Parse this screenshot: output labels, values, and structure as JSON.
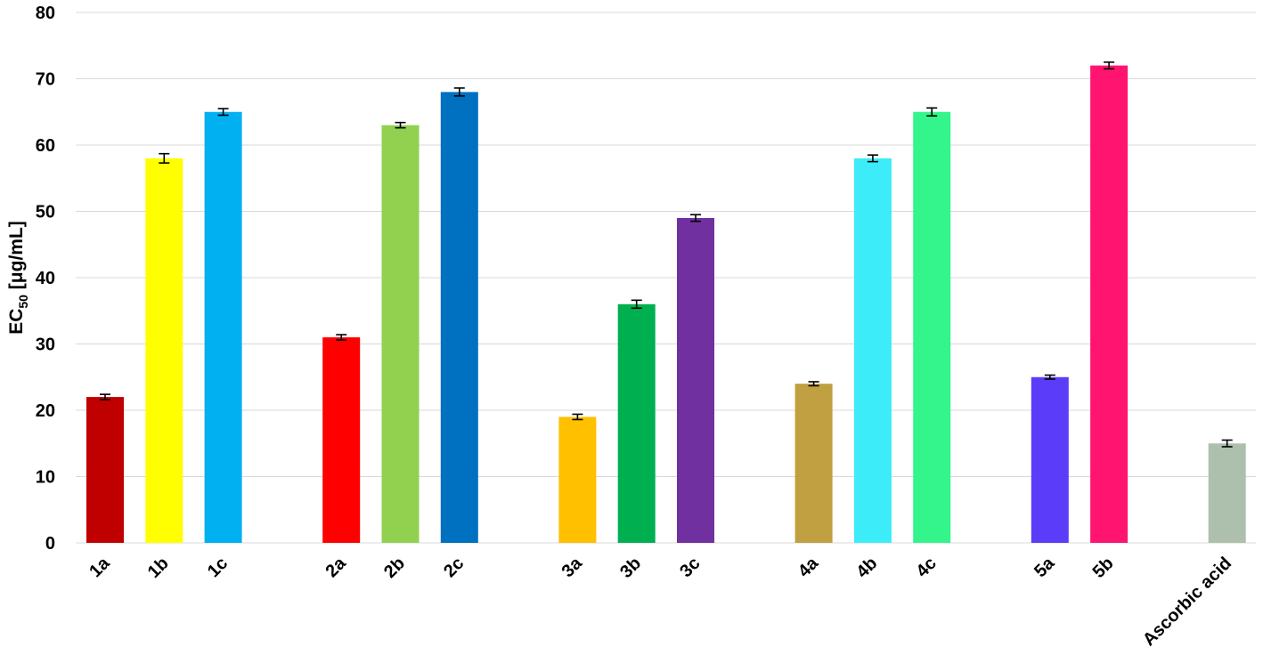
{
  "chart_data": {
    "type": "bar",
    "title": "",
    "xlabel": "",
    "ylabel": {
      "main": "EC",
      "sub": "50",
      "rest": " [μg/mL]"
    },
    "ylim": [
      0,
      80
    ],
    "yticks": [
      "0",
      "10",
      "20",
      "30",
      "40",
      "50",
      "60",
      "70",
      "80"
    ],
    "grid": true,
    "legend": "none",
    "categories": [
      "1a",
      "1b",
      "1c",
      "2a",
      "2b",
      "2c",
      "3a",
      "3b",
      "3c",
      "4a",
      "4b",
      "4c",
      "5a",
      "5b",
      "Ascorbic acid"
    ],
    "groups": [
      [
        0,
        1,
        2
      ],
      [
        3,
        4,
        5
      ],
      [
        6,
        7,
        8
      ],
      [
        9,
        10,
        11
      ],
      [
        12,
        13
      ],
      [
        14
      ]
    ],
    "values": [
      22,
      58,
      65,
      31,
      63,
      68,
      19,
      36,
      49,
      24,
      58,
      65,
      25,
      72,
      15
    ],
    "errors": [
      0.4,
      0.7,
      0.5,
      0.4,
      0.4,
      0.6,
      0.4,
      0.6,
      0.5,
      0.3,
      0.5,
      0.6,
      0.3,
      0.5,
      0.5
    ],
    "colors": [
      "#c00000",
      "#ffff00",
      "#00b0f0",
      "#ff0000",
      "#92d050",
      "#0070c0",
      "#ffc000",
      "#00b050",
      "#7030a0",
      "#c0a040",
      "#3cecf8",
      "#33f58c",
      "#5b3cf8",
      "#ff1470",
      "#adbfad"
    ]
  }
}
